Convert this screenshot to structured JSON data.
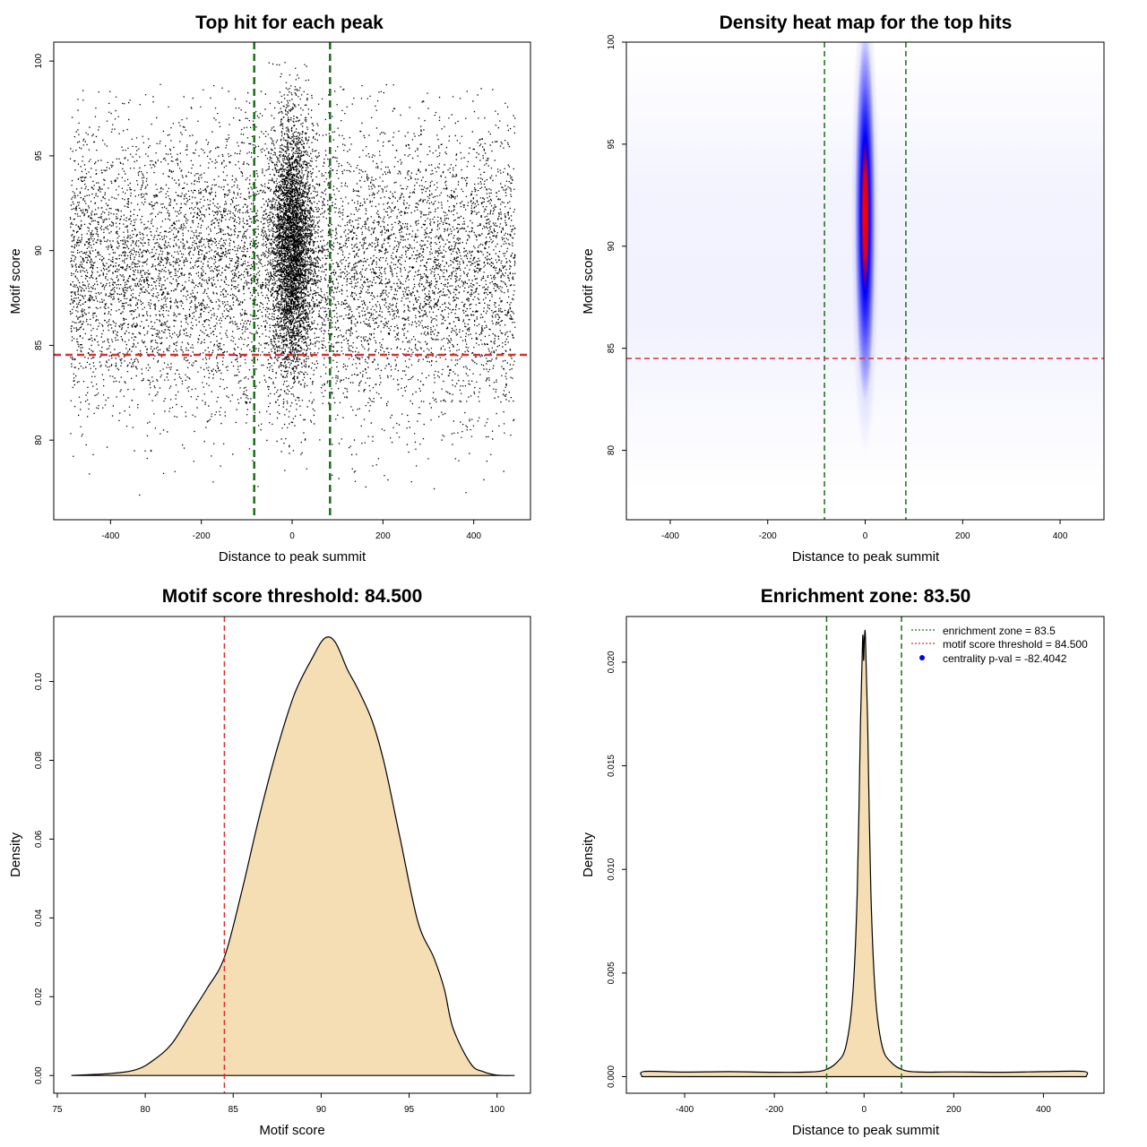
{
  "chart_data": [
    {
      "id": "scatter",
      "type": "scatter",
      "title": "Top hit for each peak",
      "xlabel": "Distance to peak summit",
      "ylabel": "Motif score",
      "xlim": [
        -525,
        525
      ],
      "ylim": [
        75.8,
        101
      ],
      "xticks": [
        -400,
        -200,
        0,
        200,
        400
      ],
      "yticks": [
        80,
        85,
        90,
        95,
        100
      ],
      "x_range_points": [
        -490,
        490
      ],
      "central_core": {
        "center": 0,
        "sd": 22,
        "score_mean": 90.3,
        "score_sd": 3.2,
        "score_max": 100
      },
      "background": {
        "score_mean": 89.0,
        "score_sd": 3.8
      },
      "enrichment_zone": [
        -83.5,
        83.5
      ],
      "threshold": 84.5,
      "colors": {
        "points": "#000000",
        "zone": "#1a6e1a",
        "threshold": "#d93030"
      }
    },
    {
      "id": "heatmap",
      "type": "heatmap",
      "title": "Density heat map for the top hits",
      "xlabel": "Distance to peak summit",
      "ylabel": "Motif score",
      "xlim": [
        -490,
        490
      ],
      "ylim": [
        76.6,
        100
      ],
      "xticks": [
        -400,
        -200,
        0,
        200,
        400
      ],
      "yticks": [
        80,
        85,
        90,
        95,
        100
      ],
      "hotspot": {
        "x": 0,
        "y": 91.5,
        "x_sd": 8,
        "y_sd": 3.5
      },
      "enrichment_zone": [
        -83.5,
        83.5
      ],
      "threshold": 84.5,
      "colors": {
        "low": "#ffffff",
        "mid": "#0000ff",
        "high": "#ff0000",
        "zone": "#1a6e1a",
        "threshold": "#d93030"
      }
    },
    {
      "id": "score_density",
      "type": "area",
      "title": "Motif score threshold: 84.500",
      "xlabel": "Motif score",
      "ylabel": "Density",
      "xlim": [
        74.8,
        101.9
      ],
      "ylim": [
        -0.0045,
        0.1165
      ],
      "xticks": [
        75,
        80,
        85,
        90,
        95,
        100
      ],
      "yticks": [
        0.0,
        0.02,
        0.04,
        0.06,
        0.08,
        0.1
      ],
      "ytick_labels": [
        "0.00",
        "0.02",
        "0.04",
        "0.06",
        "0.08",
        "0.10"
      ],
      "x": [
        75.8,
        78,
        79.5,
        80.5,
        81.5,
        82.5,
        83.5,
        84.5,
        85.5,
        86.5,
        87.5,
        88.5,
        89.5,
        90.2,
        90.8,
        91.5,
        92.1,
        92.9,
        93.6,
        94.5,
        95.5,
        96.4,
        97.0,
        97.5,
        98.5,
        99.2,
        100,
        101
      ],
      "y": [
        0.0,
        0.0005,
        0.0015,
        0.004,
        0.008,
        0.015,
        0.022,
        0.03,
        0.047,
        0.066,
        0.083,
        0.097,
        0.106,
        0.111,
        0.11,
        0.103,
        0.098,
        0.09,
        0.079,
        0.06,
        0.039,
        0.03,
        0.022,
        0.012,
        0.003,
        0.001,
        0.0001,
        0.0
      ],
      "threshold": 84.5,
      "colors": {
        "fill": "#f5deb3",
        "line": "#000000",
        "threshold": "#d93030"
      }
    },
    {
      "id": "distance_density",
      "type": "area",
      "title": "Enrichment zone: 83.50",
      "xlabel": "Distance to peak summit",
      "ylabel": "Density",
      "xlim": [
        -530,
        535
      ],
      "ylim": [
        -0.0008,
        0.0222
      ],
      "xticks": [
        -400,
        -200,
        0,
        200,
        400
      ],
      "yticks": [
        0.0,
        0.005,
        0.01,
        0.015,
        0.02
      ],
      "ytick_labels": [
        "0.000",
        "0.005",
        "0.010",
        "0.015",
        "0.020"
      ],
      "x": [
        -495,
        -490,
        -400,
        -300,
        -200,
        -130,
        -90,
        -60,
        -40,
        -25,
        -15,
        -8,
        -3,
        -1,
        0,
        1,
        3,
        8,
        15,
        25,
        40,
        60,
        90,
        130,
        200,
        300,
        400,
        490,
        495
      ],
      "y": [
        0.0,
        0.00025,
        0.00022,
        0.00024,
        0.00021,
        0.00022,
        0.0003,
        0.0007,
        0.0015,
        0.004,
        0.009,
        0.017,
        0.0212,
        0.0201,
        0.0206,
        0.0212,
        0.0212,
        0.017,
        0.009,
        0.004,
        0.0015,
        0.0007,
        0.0003,
        0.00022,
        0.00023,
        0.00021,
        0.00024,
        0.00025,
        0.0
      ],
      "enrichment_zone": [
        -83.5,
        83.5
      ],
      "legend": [
        {
          "label": "enrichment zone = 83.5",
          "style": "dotted-line",
          "color": "#1a6e1a"
        },
        {
          "label": "motif score threshold = 84.500",
          "style": "dotted-line",
          "color": "#d93030"
        },
        {
          "label": "centrality p-val = -82.4042",
          "style": "point",
          "color": "#0000ff"
        }
      ],
      "legend_position": "top-right",
      "colors": {
        "fill": "#f5deb3",
        "line": "#000000",
        "zone": "#1a6e1a",
        "threshold": "#d93030"
      }
    }
  ]
}
